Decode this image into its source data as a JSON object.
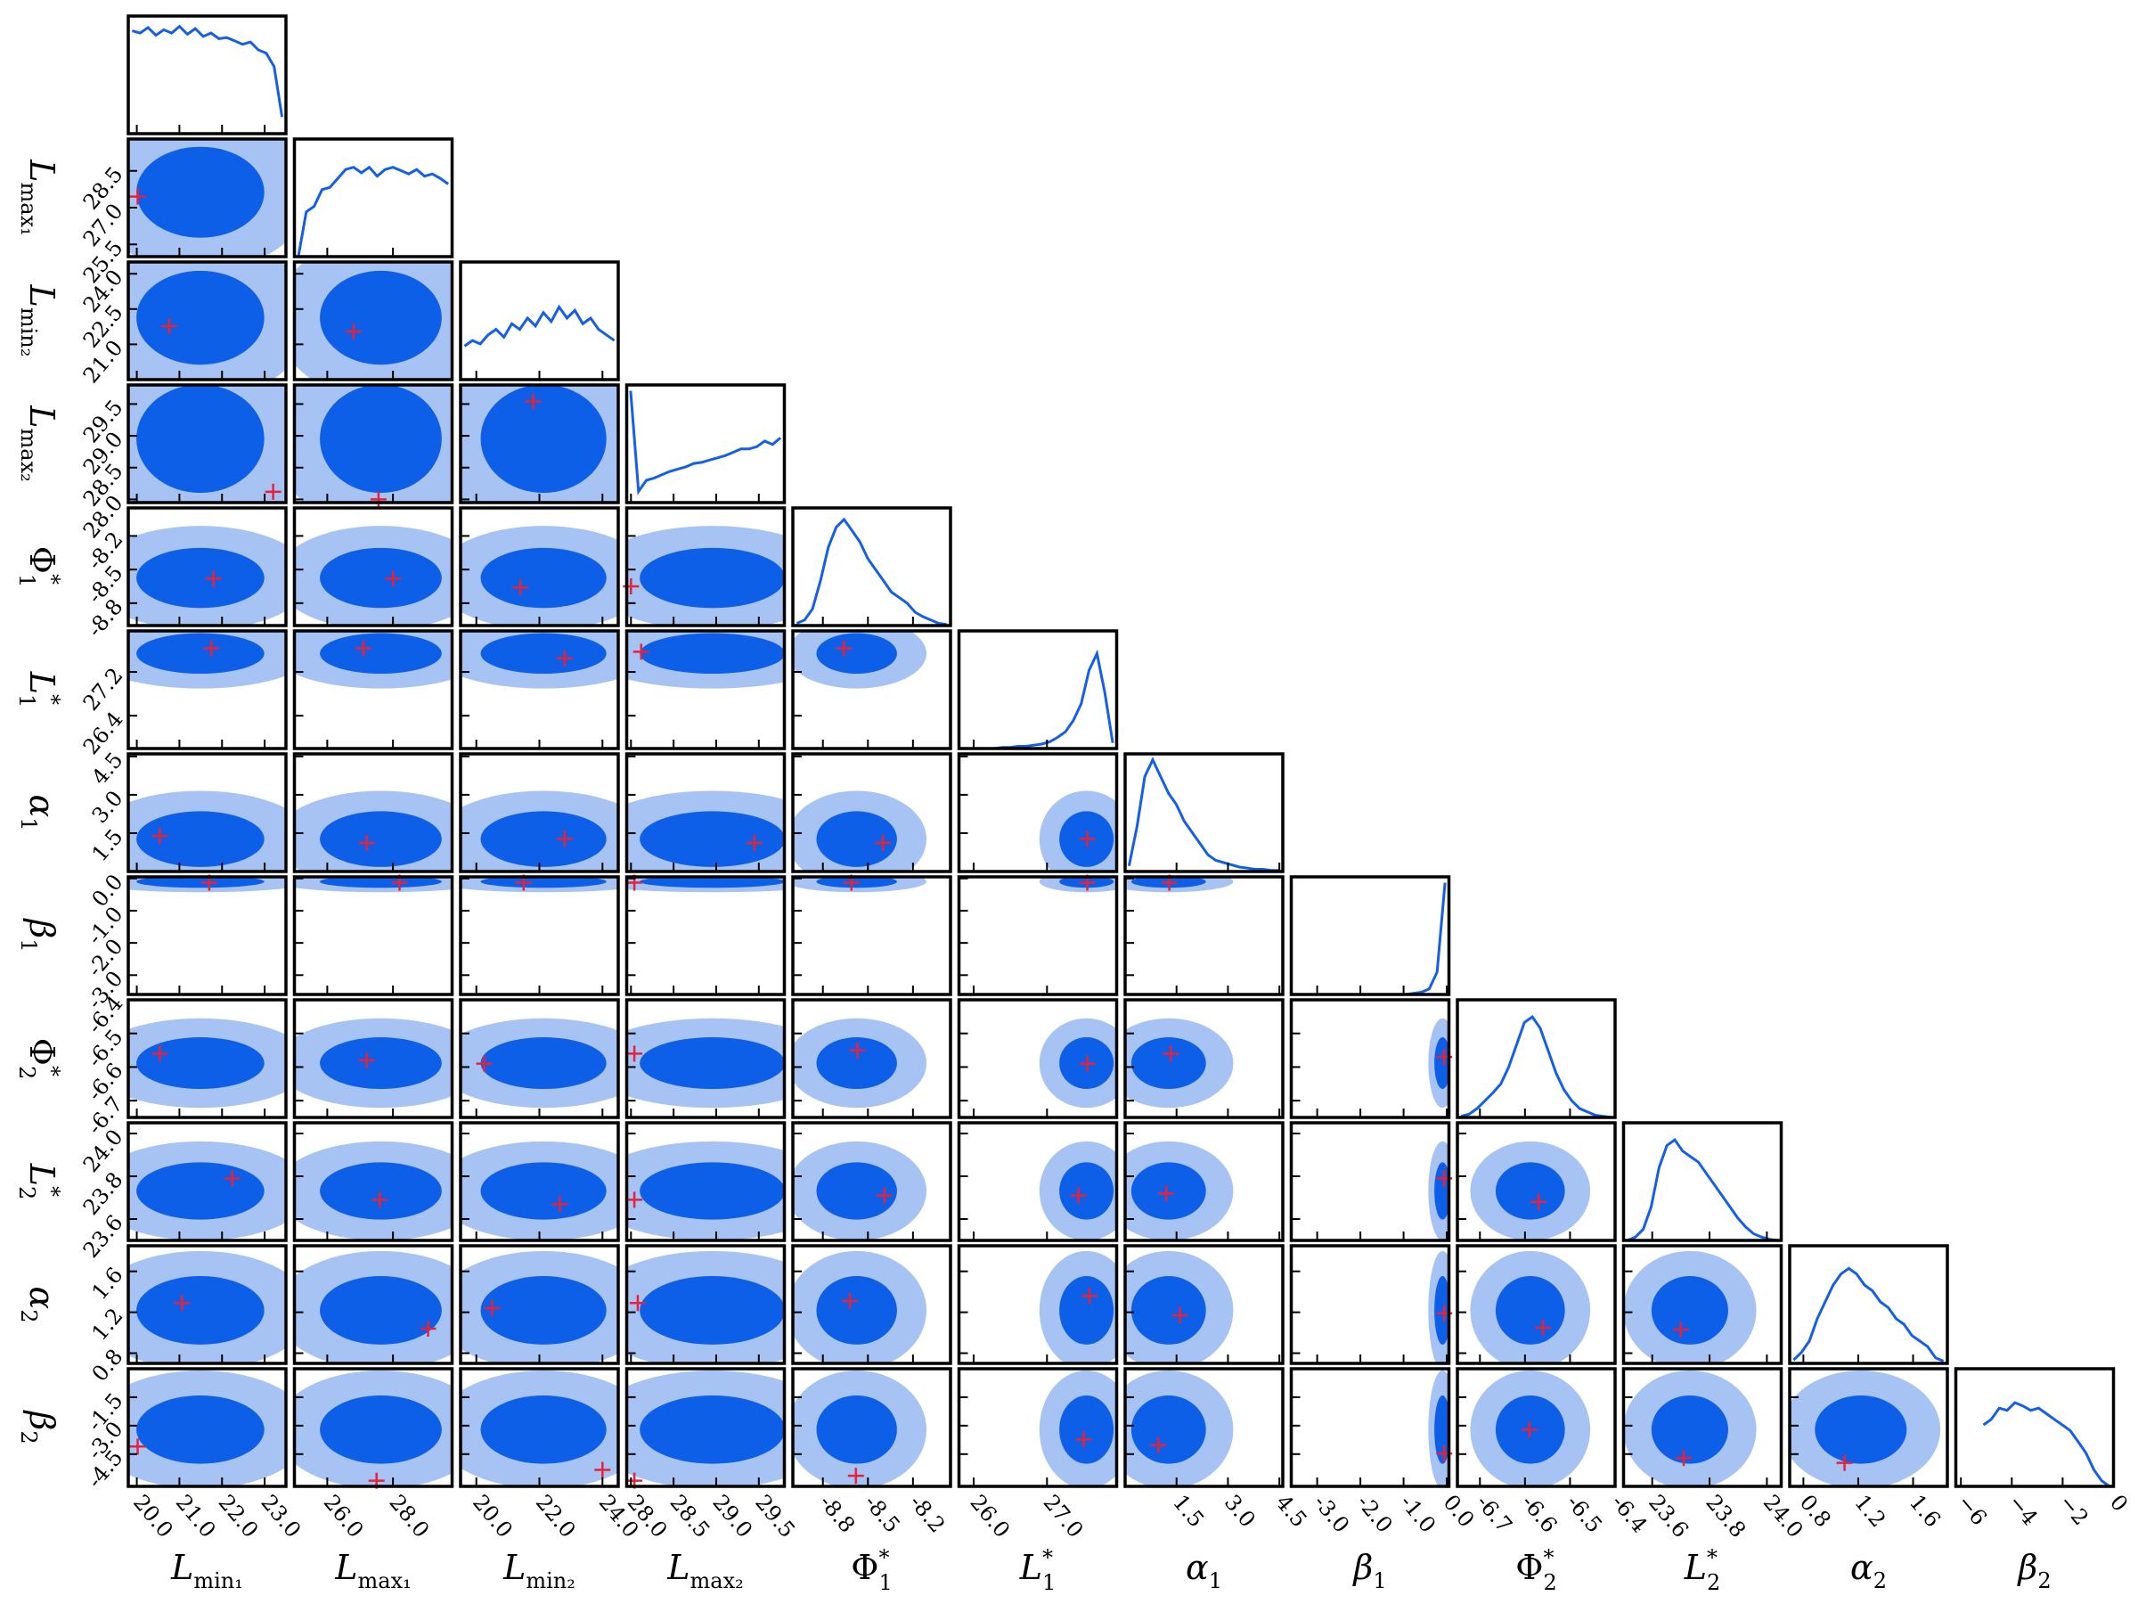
{
  "chart_data": {
    "type": "corner",
    "colors": {
      "line": "#155ee8",
      "dense": "#0d5fe8",
      "sparse": "#a6c3f4",
      "marker": "#e8213a"
    },
    "parameters": [
      {
        "symbol": "L",
        "sub": "min₁",
        "lim": [
          19.8,
          23.5
        ],
        "xticks": [
          {
            "value": 20,
            "label": "20.0"
          },
          {
            "value": 21,
            "label": "21.0"
          },
          {
            "value": 22,
            "label": "22.0"
          },
          {
            "value": 23,
            "label": "23.0"
          }
        ],
        "hist": [
          92,
          90,
          95,
          88,
          93,
          90,
          96,
          89,
          94,
          87,
          90,
          85,
          86,
          83,
          80,
          82,
          75,
          72,
          60,
          15
        ]
      },
      {
        "symbol": "L",
        "sub": "max₁",
        "lim": [
          25.0,
          29.8
        ],
        "xticks": [
          {
            "value": 26,
            "label": "26.0"
          },
          {
            "value": 28,
            "label": "28.0"
          }
        ],
        "yticks": [
          25.5,
          {
            "value": 27,
            "label": "27.0"
          },
          28.5
        ],
        "hist": [
          0,
          40,
          45,
          60,
          62,
          70,
          78,
          80,
          75,
          80,
          72,
          78,
          80,
          77,
          74,
          78,
          72,
          74,
          70,
          65
        ],
        "markers": [
          [
            20.02,
            27.45
          ]
        ]
      },
      {
        "symbol": "L",
        "sub": "min₂",
        "lim": [
          19.5,
          24.5
        ],
        "xticks": [
          {
            "value": 20,
            "label": "20.0"
          },
          {
            "value": 22,
            "label": "22.0"
          },
          {
            "value": 24,
            "label": "24.0"
          }
        ],
        "yticks": [
          {
            "value": 21,
            "label": "21.0"
          },
          22.5,
          {
            "value": 24,
            "label": "24.0"
          }
        ],
        "hist": [
          30,
          35,
          32,
          40,
          45,
          38,
          50,
          45,
          55,
          48,
          60,
          52,
          65,
          55,
          62,
          50,
          55,
          45,
          40,
          35
        ],
        "markers": [
          [
            20.76,
            21.77
          ],
          [
            26.8,
            21.54
          ]
        ]
      },
      {
        "symbol": "L",
        "sub": "max₂",
        "lim": [
          27.95,
          29.8
        ],
        "xticks": [
          {
            "value": 28,
            "label": "28.0"
          },
          28.5,
          {
            "value": 29,
            "label": "29.0"
          },
          29.5
        ],
        "yticks": [
          {
            "value": 28,
            "label": "28.0"
          },
          28.5,
          {
            "value": 29,
            "label": "29.0"
          },
          29.5
        ],
        "hist": [
          100,
          10,
          20,
          22,
          25,
          28,
          30,
          32,
          35,
          36,
          38,
          40,
          42,
          45,
          48,
          48,
          50,
          55,
          52,
          58
        ],
        "markers": [
          [
            23.2,
            28.12
          ],
          [
            27.56,
            28.0
          ],
          [
            21.8,
            29.54
          ]
        ]
      },
      {
        "symbol": "Φ",
        "sub": "1",
        "sup": "*",
        "lim": [
          -9.0,
          -7.95
        ],
        "xticks": [
          -8.8,
          -8.5,
          -8.2
        ],
        "yticks": [
          -8.8,
          -8.5,
          -8.2
        ],
        "hist": [
          2,
          5,
          15,
          40,
          70,
          88,
          95,
          85,
          75,
          60,
          50,
          40,
          30,
          25,
          20,
          12,
          8,
          5,
          2,
          1
        ],
        "markers": [
          [
            21.8,
            -8.58
          ],
          [
            28.0,
            -8.58
          ],
          [
            21.4,
            -8.66
          ],
          [
            28.0,
            -8.65
          ]
        ]
      },
      {
        "symbol": "L",
        "sub": "1",
        "sup": "*",
        "lim": [
          25.8,
          27.95
        ],
        "xticks": [
          {
            "value": 26,
            "label": "26.0"
          },
          {
            "value": 27,
            "label": "27.0"
          }
        ],
        "yticks": [
          26.4,
          27.2
        ],
        "hist": [
          0,
          0,
          0,
          0,
          0,
          1,
          1,
          2,
          2,
          3,
          4,
          6,
          10,
          15,
          25,
          40,
          70,
          85,
          50,
          5
        ],
        "markers": [
          [
            21.75,
            27.63
          ],
          [
            27.1,
            27.63
          ],
          [
            22.8,
            27.45
          ],
          [
            28.12,
            27.57
          ],
          [
            -8.66,
            27.63
          ]
        ]
      },
      {
        "symbol": "α",
        "sub": "1",
        "lim": [
          0,
          4.6
        ],
        "xticks": [
          1.5,
          {
            "value": 3,
            "label": "3.0"
          },
          4.5
        ],
        "yticks": [
          1.5,
          {
            "value": 3,
            "label": "3.0"
          },
          4.5
        ],
        "hist": [
          5,
          40,
          85,
          100,
          85,
          70,
          60,
          45,
          35,
          25,
          15,
          10,
          8,
          6,
          4,
          3,
          2,
          2,
          1,
          1
        ],
        "markers": [
          [
            20.54,
            1.39
          ],
          [
            27.2,
            1.12
          ],
          [
            22.8,
            1.28
          ],
          [
            29.45,
            1.12
          ],
          [
            -8.4,
            1.12
          ],
          [
            27.55,
            1.28
          ]
        ]
      },
      {
        "symbol": "β",
        "sub": "1",
        "lim": [
          -3.6,
          0.05
        ],
        "xticks": [
          {
            "value": -3,
            "label": "-3.0"
          },
          {
            "value": -2,
            "label": "-2.0"
          },
          {
            "value": -1,
            "label": "-1.0"
          },
          {
            "value": 0,
            "label": "0.0"
          }
        ],
        "yticks": [
          {
            "value": -3,
            "label": "-3.0"
          },
          {
            "value": -2,
            "label": "-2.0"
          },
          {
            "value": -1,
            "label": "-1.0"
          },
          {
            "value": 0,
            "label": "0.0"
          }
        ],
        "hist": [
          0,
          0,
          0,
          0,
          0,
          0,
          0,
          0,
          0,
          0,
          0,
          0,
          0,
          0,
          0,
          1,
          2,
          5,
          20,
          100
        ],
        "markers": [
          [
            21.7,
            -0.13
          ],
          [
            28.2,
            -0.13
          ],
          [
            21.5,
            -0.13
          ],
          [
            28.04,
            -0.13
          ],
          [
            -8.61,
            -0.13
          ],
          [
            27.55,
            -0.13
          ],
          [
            1.29,
            -0.13
          ]
        ]
      },
      {
        "symbol": "Φ",
        "sub": "2",
        "sup": "*",
        "lim": [
          -6.75,
          -6.4
        ],
        "xticks": [
          -6.7,
          -6.6,
          -6.5,
          -6.4
        ],
        "yticks": [
          -6.7,
          -6.6,
          -6.5,
          -6.4
        ],
        "hist": [
          1,
          3,
          8,
          15,
          22,
          30,
          45,
          65,
          85,
          90,
          80,
          60,
          40,
          25,
          15,
          8,
          5,
          2,
          1,
          0
        ],
        "markers": [
          [
            20.54,
            -6.56
          ],
          [
            27.2,
            -6.58
          ],
          [
            20.25,
            -6.59
          ],
          [
            28.04,
            -6.56
          ],
          [
            -8.57,
            -6.55
          ],
          [
            27.55,
            -6.59
          ],
          [
            1.33,
            -6.56
          ],
          [
            -0.06,
            -6.57
          ]
        ]
      },
      {
        "symbol": "L",
        "sub": "2",
        "sup": "*",
        "lim": [
          23.5,
          24.05
        ],
        "xticks": [
          23.6,
          23.8,
          {
            "value": 24,
            "label": "24.0"
          }
        ],
        "yticks": [
          23.6,
          23.8,
          {
            "value": 24,
            "label": "24.0"
          }
        ],
        "hist": [
          0,
          3,
          10,
          30,
          65,
          85,
          90,
          80,
          75,
          70,
          60,
          50,
          40,
          30,
          20,
          12,
          6,
          3,
          1,
          0
        ],
        "markers": [
          [
            22.24,
            23.79
          ],
          [
            27.6,
            23.69
          ],
          [
            22.65,
            23.67
          ],
          [
            28.04,
            23.69
          ],
          [
            -8.39,
            23.71
          ],
          [
            27.43,
            23.71
          ],
          [
            1.2,
            23.72
          ],
          [
            -0.06,
            23.79
          ],
          [
            -6.57,
            23.68
          ]
        ]
      },
      {
        "symbol": "α",
        "sub": "2",
        "lim": [
          0.7,
          1.85
        ],
        "xticks": [
          0.8,
          1.2,
          1.6
        ],
        "yticks": [
          0.8,
          1.2,
          1.6
        ],
        "hist": [
          3,
          10,
          20,
          40,
          55,
          70,
          80,
          85,
          80,
          70,
          65,
          55,
          50,
          40,
          35,
          25,
          20,
          15,
          5,
          2
        ],
        "markers": [
          [
            21.06,
            1.29
          ],
          [
            29.07,
            1.04
          ],
          [
            20.5,
            1.24
          ],
          [
            28.08,
            1.29
          ],
          [
            -8.62,
            1.31
          ],
          [
            27.58,
            1.36
          ],
          [
            1.6,
            1.17
          ],
          [
            -0.06,
            1.19
          ],
          [
            -6.56,
            1.05
          ],
          [
            23.7,
            1.03
          ]
        ]
      },
      {
        "symbol": "β",
        "sub": "2",
        "lim": [
          -6.2,
          0
        ],
        "xticks": [
          {
            "value": -6,
            "label": "−6"
          },
          {
            "value": -4,
            "label": "−4"
          },
          {
            "value": -2,
            "label": "−2"
          },
          0
        ],
        "yticks": [
          -1.5,
          {
            "value": -3,
            "label": "-3.0"
          },
          -4.5
        ],
        "hist": [
          null,
          null,
          null,
          55,
          60,
          70,
          68,
          75,
          72,
          68,
          70,
          65,
          60,
          55,
          50,
          40,
          30,
          15,
          5,
          0
        ],
        "markers": [
          [
            20.02,
            -4.1
          ],
          [
            27.5,
            -5.9
          ],
          [
            24.0,
            -5.33
          ],
          [
            28.04,
            -5.9
          ],
          [
            -8.58,
            -5.64
          ],
          [
            27.5,
            -3.72
          ],
          [
            0.97,
            -4.03
          ],
          [
            -0.06,
            -4.47
          ],
          [
            -6.59,
            -3.22
          ],
          [
            23.71,
            -4.7
          ],
          [
            1.1,
            -4.96
          ]
        ]
      }
    ]
  }
}
